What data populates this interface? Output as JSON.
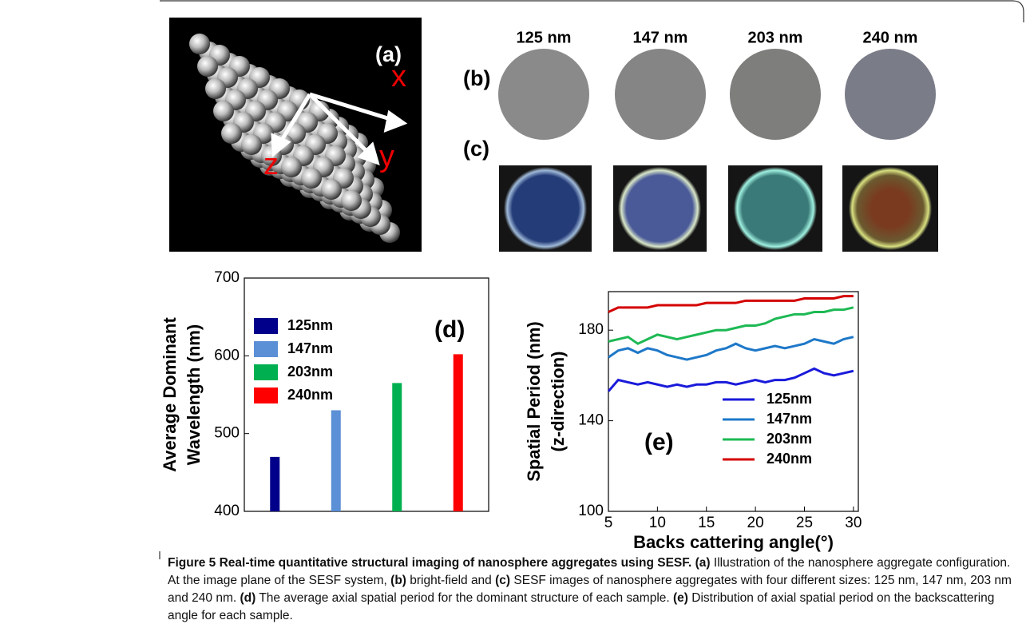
{
  "panel_a": {
    "label": "(a)",
    "axes": [
      "x",
      "y",
      "z"
    ]
  },
  "panel_b": {
    "label": "(b)",
    "sizes": [
      "125 nm",
      "147 nm",
      "203 nm",
      "240 nm"
    ]
  },
  "panel_c": {
    "label": "(c)"
  },
  "chart_data": [
    {
      "type": "bar",
      "annotation": "(d)",
      "ylabel": [
        "Average Dominant",
        "Wavelength (nm)"
      ],
      "categories": [
        null,
        null,
        null,
        null
      ],
      "values": [
        470,
        530,
        565,
        602
      ],
      "colors": [
        "#00008b",
        "#5b8fd6",
        "#00b050",
        "#ff0000"
      ],
      "legend": [
        "125nm",
        "147nm",
        "203nm",
        "240nm"
      ],
      "legend_position": "upper left",
      "ylim": [
        400,
        700
      ],
      "yticks": [
        400,
        500,
        600,
        700
      ]
    },
    {
      "type": "line",
      "annotation": "(e)",
      "ylabel": [
        "Spatial Period (nm)",
        "(z-direction)"
      ],
      "xlabel": "Backs cattering angle(°)",
      "legend_position": "lower right",
      "x": [
        5,
        6,
        7,
        8,
        9,
        10,
        11,
        12,
        13,
        14,
        15,
        16,
        17,
        18,
        19,
        20,
        21,
        22,
        23,
        24,
        25,
        26,
        27,
        28,
        29,
        30
      ],
      "series": [
        {
          "name": "125nm",
          "color": "#1a1adb",
          "values": [
            153,
            158,
            157,
            156,
            157,
            156,
            155,
            156,
            155,
            156,
            156,
            157,
            157,
            156,
            157,
            158,
            157,
            158,
            158,
            159,
            161,
            163,
            161,
            160,
            161,
            162
          ]
        },
        {
          "name": "147nm",
          "color": "#1e78c8",
          "values": [
            168,
            171,
            172,
            170,
            172,
            171,
            169,
            168,
            167,
            168,
            169,
            171,
            172,
            174,
            172,
            171,
            172,
            173,
            172,
            173,
            174,
            176,
            175,
            174,
            176,
            177
          ]
        },
        {
          "name": "203nm",
          "color": "#1db954",
          "values": [
            175,
            176,
            177,
            174,
            176,
            178,
            177,
            176,
            177,
            178,
            179,
            180,
            180,
            181,
            182,
            182,
            183,
            185,
            186,
            187,
            187,
            188,
            188,
            189,
            189,
            190
          ]
        },
        {
          "name": "240nm",
          "color": "#d40000",
          "values": [
            188,
            190,
            190,
            190,
            190,
            191,
            191,
            191,
            191,
            191,
            192,
            192,
            192,
            192,
            193,
            193,
            193,
            193,
            193,
            193,
            194,
            194,
            194,
            194,
            195,
            195
          ]
        }
      ],
      "xlim": [
        5,
        30.5
      ],
      "xticks": [
        5,
        10,
        15,
        20,
        25,
        30
      ],
      "ylim": [
        100,
        197
      ],
      "yticks": [
        100,
        140,
        180
      ]
    }
  ],
  "caption": [
    "Figure 5 Real-time quantitative structural imaging of nanosphere aggregates using SESF.",
    "(a)",
    "Illustration of the nanosphere aggregate configuration. At the image plane of the SESF system,",
    "(b)",
    "bright-field and",
    "(c)",
    "SESF images of nanosphere aggregates with four different sizes: 125 nm, 147 nm, 203 nm and 240 nm.",
    "(d)",
    "The average axial spatial period for the dominant structure of each sample.",
    "(e)",
    "Distribution of axial spatial period on the backscattering angle for each sample."
  ]
}
